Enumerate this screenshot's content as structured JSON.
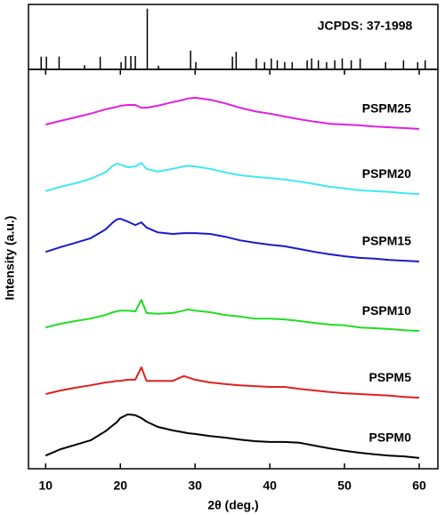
{
  "chart_data": [
    {
      "type": "stem",
      "annotation": "JCPDS: 37-1998",
      "x": [
        9.4,
        10.1,
        11.8,
        15.2,
        17.3,
        20.1,
        20.7,
        21.4,
        22.0,
        23.6,
        25.1,
        29.4,
        30.1,
        35.0,
        35.5,
        38.2,
        39.3,
        40.2,
        41.0,
        42.0,
        43.0,
        45.0,
        45.6,
        46.5,
        47.6,
        48.7,
        49.7,
        50.9,
        52.1,
        55.5,
        57.9,
        59.8,
        60.8
      ],
      "values": [
        21,
        21,
        21,
        7,
        21,
        12,
        22,
        22,
        22,
        100,
        6,
        31,
        12,
        21,
        29,
        18,
        12,
        18,
        15,
        12,
        12,
        15,
        18,
        15,
        12,
        15,
        18,
        15,
        18,
        12,
        15,
        12,
        15
      ],
      "color": "#000000",
      "xlim": [
        7.7,
        62.5
      ],
      "ylim": [
        0,
        107
      ]
    },
    {
      "type": "line",
      "x_label": "2θ (deg.)",
      "y_label": "Intensity (a.u.)",
      "x": [
        10,
        12,
        14,
        16,
        18,
        19,
        19.5,
        20,
        21,
        22,
        22.8,
        23.5,
        25,
        27,
        28.5,
        29,
        30,
        32,
        34,
        36,
        38,
        40,
        42,
        44,
        46,
        48,
        50,
        52,
        54,
        56,
        58,
        60
      ],
      "series": [
        {
          "name": "PSPM25",
          "color": "#e020e0",
          "values": [
            86.2,
            87.1,
            88.0,
            88.9,
            90.0,
            90.4,
            90.6,
            90.9,
            91.1,
            91.1,
            90.4,
            90.4,
            90.9,
            91.8,
            92.4,
            92.7,
            92.9,
            92.4,
            91.5,
            90.4,
            89.5,
            88.9,
            88.2,
            87.5,
            86.9,
            86.4,
            86.2,
            86.0,
            85.7,
            85.5,
            85.3,
            85.1
          ]
        },
        {
          "name": "PSPM20",
          "color": "#40e8f0",
          "values": [
            69.5,
            70.6,
            71.5,
            72.6,
            74.2,
            75.9,
            76.4,
            76.2,
            75.5,
            75.7,
            76.6,
            75.1,
            74.4,
            75.1,
            75.7,
            75.9,
            75.7,
            75.1,
            74.2,
            73.5,
            73.1,
            72.8,
            72.4,
            71.9,
            71.3,
            70.6,
            70.2,
            69.7,
            69.5,
            69.3,
            69.0,
            68.8
          ]
        },
        {
          "name": "PSPM15",
          "color": "#1a1acd",
          "values": [
            54.3,
            55.5,
            56.6,
            57.7,
            59.9,
            61.7,
            62.4,
            62.6,
            61.9,
            61.0,
            61.7,
            60.4,
            59.2,
            58.8,
            59.0,
            59.0,
            59.0,
            58.8,
            58.1,
            57.2,
            56.6,
            56.1,
            55.7,
            55.0,
            54.3,
            53.7,
            53.2,
            52.8,
            52.6,
            52.3,
            52.1,
            51.9
          ]
        },
        {
          "name": "PSPM10",
          "color": "#22dd22",
          "values": [
            35.4,
            36.3,
            37.0,
            37.6,
            38.5,
            39.2,
            39.4,
            39.6,
            39.6,
            39.4,
            42.3,
            39.0,
            38.8,
            39.0,
            39.6,
            39.9,
            39.6,
            39.2,
            38.5,
            38.1,
            37.6,
            37.6,
            37.4,
            37.0,
            36.5,
            36.1,
            35.9,
            35.4,
            35.2,
            35.0,
            34.7,
            34.5
          ]
        },
        {
          "name": "PSPM5",
          "color": "#e02020",
          "values": [
            18.7,
            19.6,
            20.3,
            20.9,
            21.6,
            21.8,
            22.0,
            22.0,
            22.3,
            22.3,
            25.4,
            22.0,
            22.0,
            22.0,
            23.2,
            22.9,
            22.3,
            21.6,
            21.2,
            20.9,
            20.7,
            20.5,
            20.5,
            20.0,
            19.6,
            19.2,
            18.9,
            18.7,
            18.5,
            18.3,
            18.0,
            17.8
          ]
        },
        {
          "name": "PSPM0",
          "color": "#000000",
          "values": [
            3.3,
            4.9,
            6.0,
            7.1,
            9.4,
            10.9,
            11.6,
            12.7,
            13.6,
            13.4,
            12.7,
            11.8,
            10.5,
            9.6,
            9.1,
            8.9,
            8.7,
            8.2,
            7.8,
            7.3,
            6.9,
            6.7,
            6.7,
            6.5,
            5.8,
            5.1,
            4.5,
            4.0,
            3.6,
            3.3,
            3.1,
            2.7
          ]
        }
      ],
      "xlim": [
        7.7,
        62.5
      ],
      "ylim": [
        0,
        100
      ],
      "xticks": [
        10,
        20,
        30,
        40,
        50,
        60
      ]
    }
  ]
}
